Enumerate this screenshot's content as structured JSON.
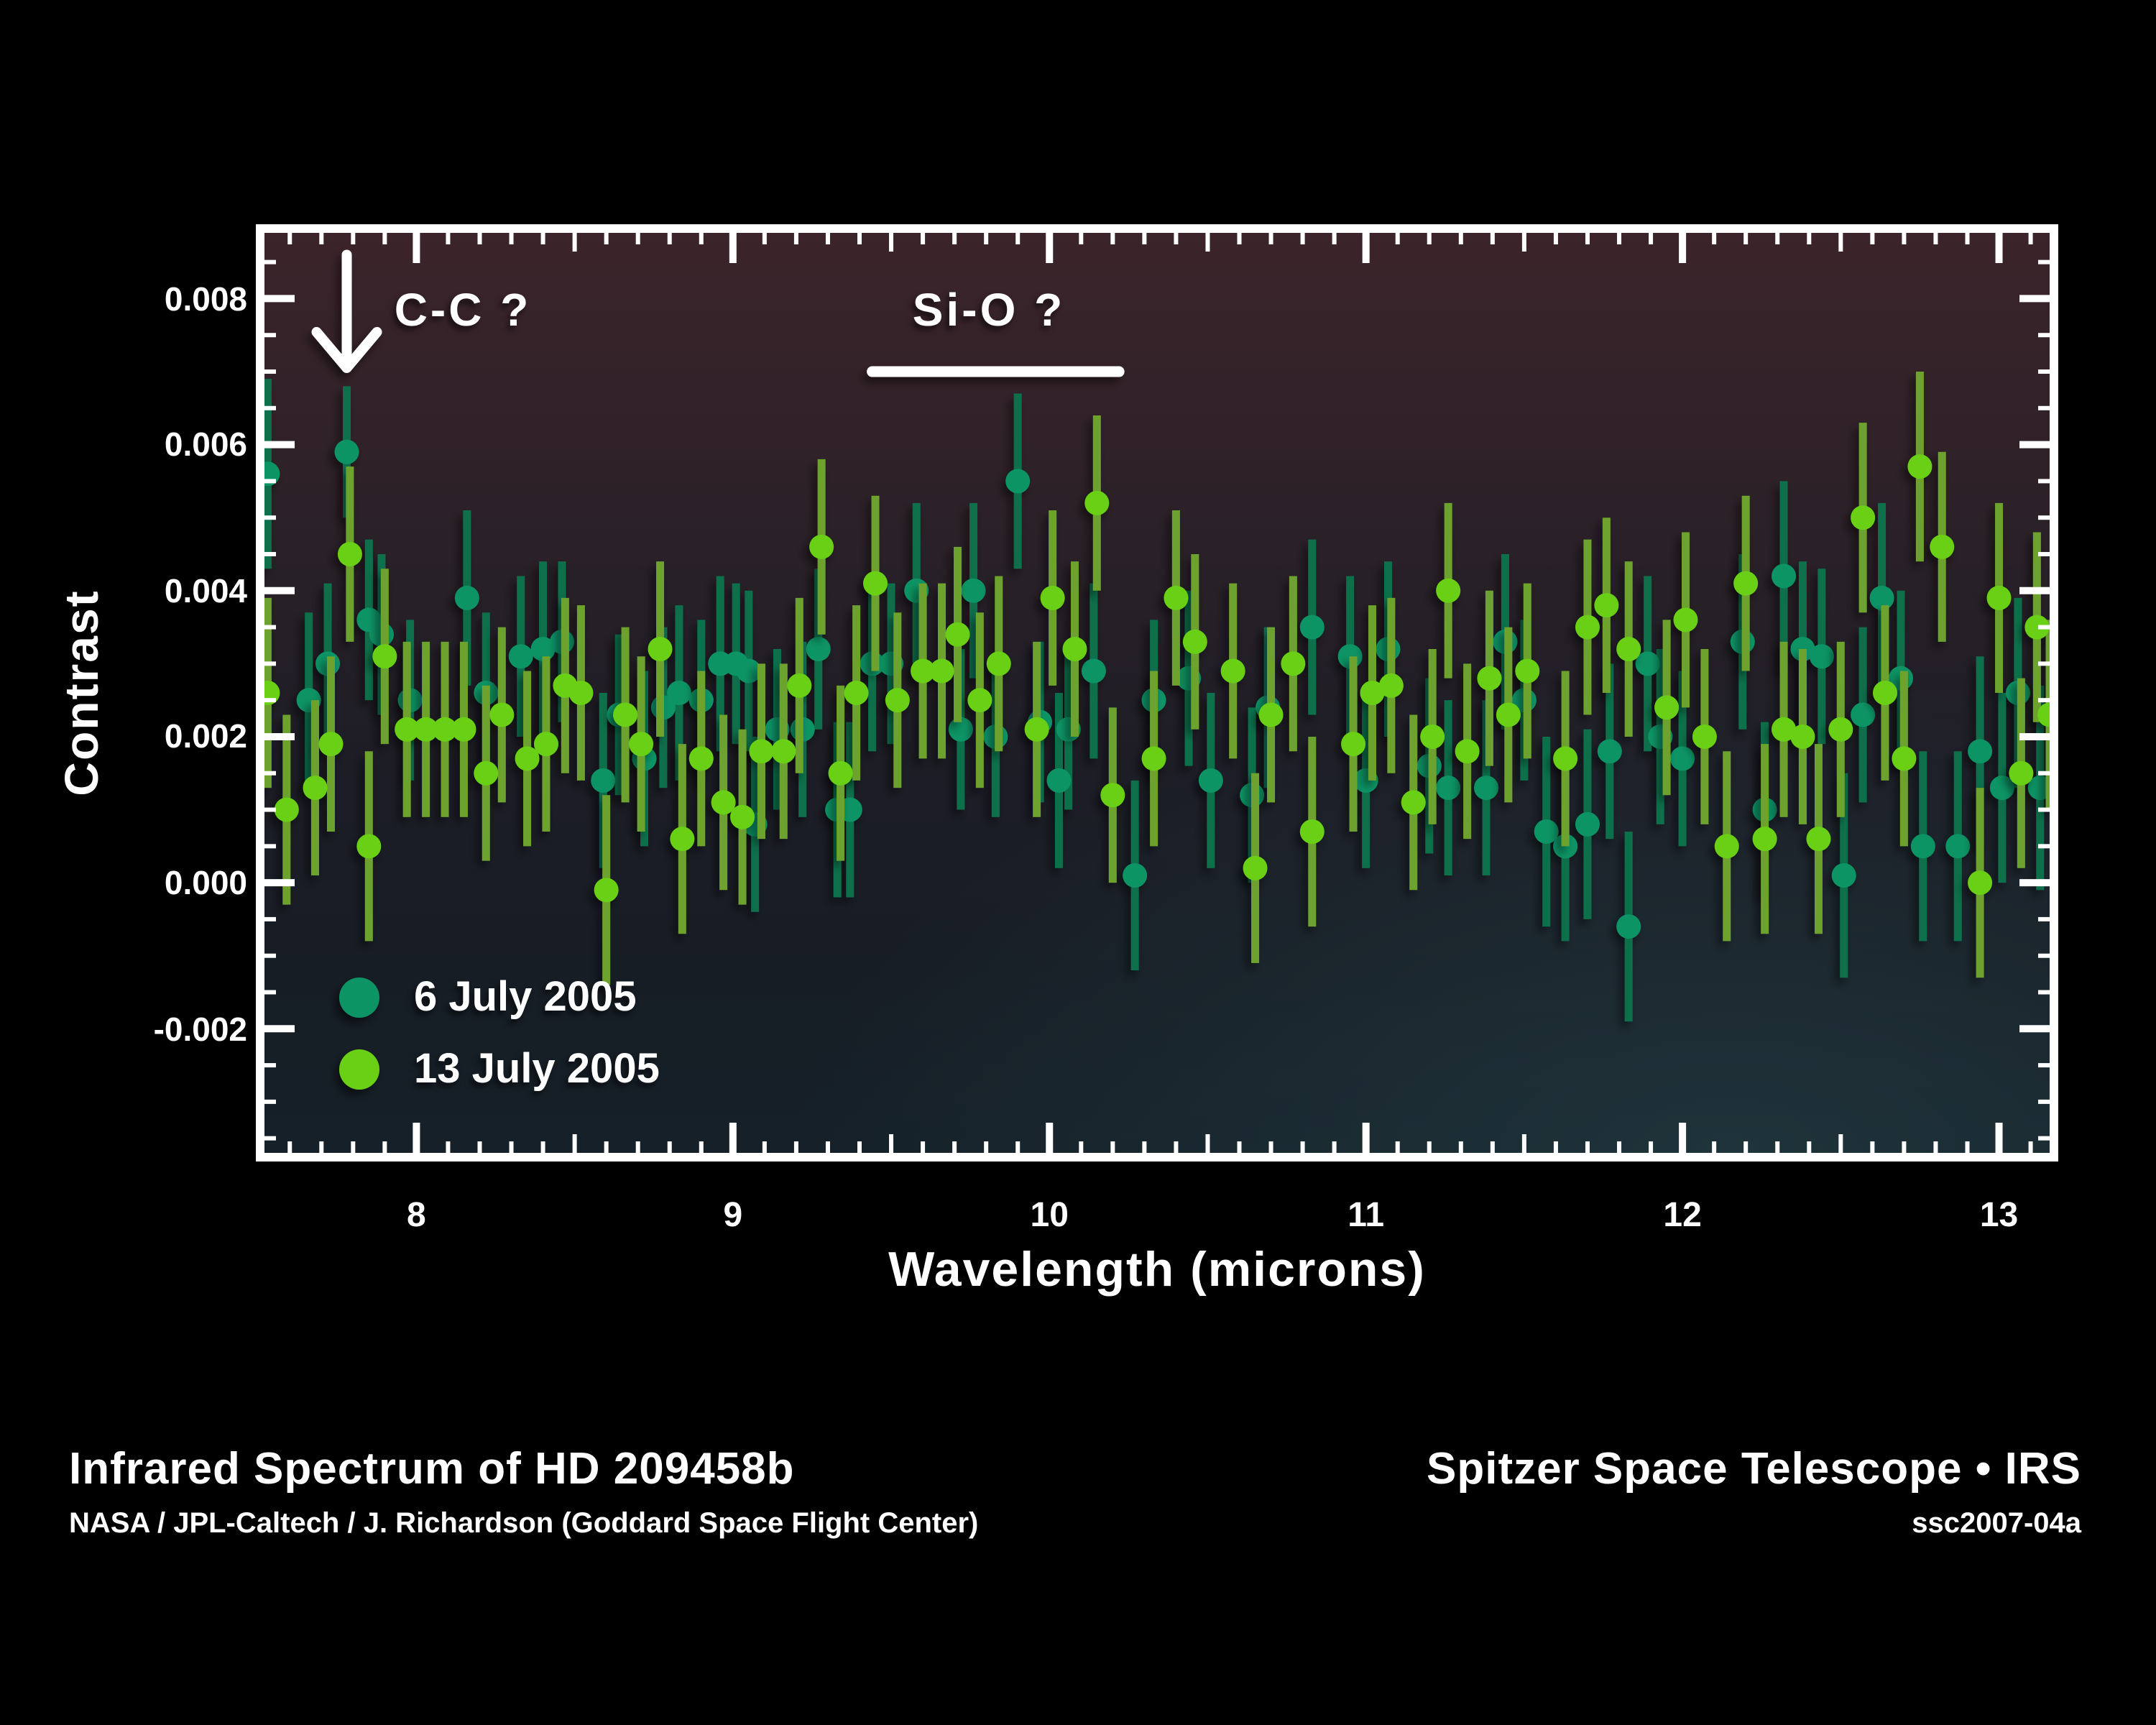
{
  "figure": {
    "captions": {
      "left_title": "Infrared Spectrum of HD 209458b",
      "left_credit": "NASA /  JPL-Caltech /  J. Richardson (Goddard Space Flight Center)",
      "right_title": "Spitzer Space Telescope • IRS",
      "right_id": "ssc2007-04a"
    },
    "background_color": "#000000"
  },
  "chart_data": {
    "type": "scatter",
    "title": "",
    "xlabel": "Wavelength (microns)",
    "ylabel": "Contrast",
    "xlim": [
      7.52,
      13.16
    ],
    "ylim": [
      -0.0037,
      0.0089
    ],
    "grid": false,
    "legend_position": "inside-bottom-left",
    "x_ticks": [
      8,
      9,
      10,
      11,
      12,
      13
    ],
    "x_minor_step": 0.1,
    "y_ticks": [
      {
        "v": 0.008,
        "label": "0.008"
      },
      {
        "v": 0.006,
        "label": "0.006"
      },
      {
        "v": 0.004,
        "label": "0.004"
      },
      {
        "v": 0.002,
        "label": "0.002"
      },
      {
        "v": 0.0,
        "label": "0.000"
      },
      {
        "v": -0.002,
        "label": "-0.002"
      }
    ],
    "y_minor_step": 0.0005,
    "frame_color": "#ffffff",
    "plot_bg": {
      "top": "#3b242a",
      "upper": "#2c2128",
      "mid": "#1d1d26",
      "lower": "#171d25",
      "bottom": "#152028",
      "corner_accent": "#2b4b50"
    },
    "annotations": [
      {
        "type": "arrow",
        "label": "C-C ?",
        "x": 7.78,
        "y_from": 0.0086,
        "y_to": 0.00705
      },
      {
        "type": "line",
        "label": "Si-O ?",
        "x1": 9.44,
        "x2": 10.22,
        "y": 0.007
      }
    ],
    "series": [
      {
        "name": "6 July 2005",
        "color": "#0f9465",
        "bar_color": "#0e6f4c",
        "points": [
          [
            7.53,
            0.0056,
            0.0013
          ],
          [
            7.66,
            0.0025,
            0.0012
          ],
          [
            7.72,
            0.003,
            0.0011
          ],
          [
            7.78,
            0.0059,
            0.0009
          ],
          [
            7.85,
            0.0036,
            0.0011
          ],
          [
            7.89,
            0.0034,
            0.0011
          ],
          [
            7.98,
            0.0025,
            0.0011
          ],
          [
            8.16,
            0.0039,
            0.0012
          ],
          [
            8.22,
            0.0026,
            0.0011
          ],
          [
            8.33,
            0.0031,
            0.0011
          ],
          [
            8.4,
            0.0032,
            0.0012
          ],
          [
            8.46,
            0.0033,
            0.0011
          ],
          [
            8.59,
            0.0014,
            0.0012
          ],
          [
            8.64,
            0.0023,
            0.0011
          ],
          [
            8.72,
            0.0017,
            0.0012
          ],
          [
            8.78,
            0.0024,
            0.0011
          ],
          [
            8.83,
            0.0026,
            0.0012
          ],
          [
            8.9,
            0.0025,
            0.0011
          ],
          [
            8.96,
            0.003,
            0.0012
          ],
          [
            9.01,
            0.003,
            0.0011
          ],
          [
            9.05,
            0.0029,
            0.0011
          ],
          [
            9.07,
            0.0008,
            0.0012
          ],
          [
            9.14,
            0.0021,
            0.0011
          ],
          [
            9.22,
            0.0021,
            0.0012
          ],
          [
            9.27,
            0.0032,
            0.0011
          ],
          [
            9.33,
            0.001,
            0.0012
          ],
          [
            9.37,
            0.001,
            0.0012
          ],
          [
            9.44,
            0.003,
            0.0012
          ],
          [
            9.5,
            0.003,
            0.0011
          ],
          [
            9.58,
            0.004,
            0.0012
          ],
          [
            9.72,
            0.0021,
            0.0011
          ],
          [
            9.76,
            0.004,
            0.0012
          ],
          [
            9.83,
            0.002,
            0.0011
          ],
          [
            9.9,
            0.0055,
            0.0012
          ],
          [
            9.97,
            0.0022,
            0.0011
          ],
          [
            10.03,
            0.0014,
            0.0012
          ],
          [
            10.06,
            0.0021,
            0.0011
          ],
          [
            10.14,
            0.0029,
            0.0012
          ],
          [
            10.27,
            0.0001,
            0.0013
          ],
          [
            10.33,
            0.0025,
            0.0011
          ],
          [
            10.44,
            0.0028,
            0.0012
          ],
          [
            10.51,
            0.0014,
            0.0012
          ],
          [
            10.64,
            0.0012,
            0.0012
          ],
          [
            10.69,
            0.0024,
            0.0011
          ],
          [
            10.83,
            0.0035,
            0.0012
          ],
          [
            10.95,
            0.0031,
            0.0011
          ],
          [
            11.0,
            0.0014,
            0.0012
          ],
          [
            11.07,
            0.0032,
            0.0012
          ],
          [
            11.2,
            0.0016,
            0.0012
          ],
          [
            11.26,
            0.0013,
            0.0012
          ],
          [
            11.38,
            0.0013,
            0.0012
          ],
          [
            11.44,
            0.0033,
            0.0012
          ],
          [
            11.5,
            0.0025,
            0.0011
          ],
          [
            11.57,
            0.0007,
            0.0013
          ],
          [
            11.63,
            0.0005,
            0.0013
          ],
          [
            11.7,
            0.0008,
            0.0013
          ],
          [
            11.77,
            0.0018,
            0.0012
          ],
          [
            11.83,
            -0.0006,
            0.0013
          ],
          [
            11.89,
            0.003,
            0.0012
          ],
          [
            11.93,
            0.002,
            0.0012
          ],
          [
            12.0,
            0.0017,
            0.0012
          ],
          [
            12.19,
            0.0033,
            0.0012
          ],
          [
            12.26,
            0.001,
            0.0012
          ],
          [
            12.32,
            0.0042,
            0.0013
          ],
          [
            12.38,
            0.0032,
            0.0012
          ],
          [
            12.44,
            0.0031,
            0.0012
          ],
          [
            12.51,
            0.0001,
            0.0014
          ],
          [
            12.57,
            0.0023,
            0.0012
          ],
          [
            12.63,
            0.0039,
            0.0013
          ],
          [
            12.69,
            0.0028,
            0.0012
          ],
          [
            12.76,
            0.0005,
            0.0013
          ],
          [
            12.87,
            0.0005,
            0.0013
          ],
          [
            12.94,
            0.0018,
            0.0013
          ],
          [
            13.01,
            0.0013,
            0.0013
          ],
          [
            13.06,
            0.0026,
            0.0013
          ],
          [
            13.13,
            0.0013,
            0.0014
          ]
        ]
      },
      {
        "name": "13 July 2005",
        "color": "#69d012",
        "bar_color": "#6da22f",
        "points": [
          [
            7.53,
            0.0026,
            0.0013
          ],
          [
            7.59,
            0.001,
            0.0013
          ],
          [
            7.68,
            0.0013,
            0.0012
          ],
          [
            7.73,
            0.0019,
            0.0012
          ],
          [
            7.79,
            0.0045,
            0.0012
          ],
          [
            7.85,
            0.0005,
            0.0013
          ],
          [
            7.9,
            0.0031,
            0.0012
          ],
          [
            7.97,
            0.0021,
            0.0012
          ],
          [
            8.03,
            0.0021,
            0.0012
          ],
          [
            8.09,
            0.0021,
            0.0012
          ],
          [
            8.15,
            0.0021,
            0.0012
          ],
          [
            8.22,
            0.0015,
            0.0012
          ],
          [
            8.27,
            0.0023,
            0.0012
          ],
          [
            8.35,
            0.0017,
            0.0012
          ],
          [
            8.41,
            0.0019,
            0.0012
          ],
          [
            8.47,
            0.0027,
            0.0012
          ],
          [
            8.52,
            0.0026,
            0.0012
          ],
          [
            8.6,
            -0.0001,
            0.0013
          ],
          [
            8.66,
            0.0023,
            0.0012
          ],
          [
            8.71,
            0.0019,
            0.0012
          ],
          [
            8.77,
            0.0032,
            0.0012
          ],
          [
            8.84,
            0.0006,
            0.0013
          ],
          [
            8.9,
            0.0017,
            0.0012
          ],
          [
            8.97,
            0.0011,
            0.0012
          ],
          [
            9.03,
            0.0009,
            0.0012
          ],
          [
            9.09,
            0.0018,
            0.0012
          ],
          [
            9.16,
            0.0018,
            0.0012
          ],
          [
            9.21,
            0.0027,
            0.0012
          ],
          [
            9.28,
            0.0046,
            0.0012
          ],
          [
            9.34,
            0.0015,
            0.0012
          ],
          [
            9.39,
            0.0026,
            0.0012
          ],
          [
            9.45,
            0.0041,
            0.0012
          ],
          [
            9.52,
            0.0025,
            0.0012
          ],
          [
            9.6,
            0.0029,
            0.0012
          ],
          [
            9.66,
            0.0029,
            0.0012
          ],
          [
            9.71,
            0.0034,
            0.0012
          ],
          [
            9.78,
            0.0025,
            0.0012
          ],
          [
            9.84,
            0.003,
            0.0012
          ],
          [
            9.96,
            0.0021,
            0.0012
          ],
          [
            10.01,
            0.0039,
            0.0012
          ],
          [
            10.08,
            0.0032,
            0.0012
          ],
          [
            10.15,
            0.0052,
            0.0012
          ],
          [
            10.2,
            0.0012,
            0.0012
          ],
          [
            10.33,
            0.0017,
            0.0012
          ],
          [
            10.4,
            0.0039,
            0.0012
          ],
          [
            10.46,
            0.0033,
            0.0012
          ],
          [
            10.58,
            0.0029,
            0.0012
          ],
          [
            10.65,
            0.0002,
            0.0013
          ],
          [
            10.7,
            0.0023,
            0.0012
          ],
          [
            10.77,
            0.003,
            0.0012
          ],
          [
            10.83,
            0.0007,
            0.0013
          ],
          [
            10.96,
            0.0019,
            0.0012
          ],
          [
            11.02,
            0.0026,
            0.0012
          ],
          [
            11.08,
            0.0027,
            0.0012
          ],
          [
            11.15,
            0.0011,
            0.0012
          ],
          [
            11.21,
            0.002,
            0.0012
          ],
          [
            11.26,
            0.004,
            0.0012
          ],
          [
            11.32,
            0.0018,
            0.0012
          ],
          [
            11.39,
            0.0028,
            0.0012
          ],
          [
            11.45,
            0.0023,
            0.0012
          ],
          [
            11.51,
            0.0029,
            0.0012
          ],
          [
            11.63,
            0.0017,
            0.0012
          ],
          [
            11.7,
            0.0035,
            0.0012
          ],
          [
            11.76,
            0.0038,
            0.0012
          ],
          [
            11.83,
            0.0032,
            0.0012
          ],
          [
            11.95,
            0.0024,
            0.0012
          ],
          [
            12.01,
            0.0036,
            0.0012
          ],
          [
            12.07,
            0.002,
            0.0012
          ],
          [
            12.14,
            0.0005,
            0.0013
          ],
          [
            12.2,
            0.0041,
            0.0012
          ],
          [
            12.26,
            0.0006,
            0.0013
          ],
          [
            12.32,
            0.0021,
            0.0012
          ],
          [
            12.38,
            0.002,
            0.0012
          ],
          [
            12.43,
            0.0006,
            0.0013
          ],
          [
            12.5,
            0.0021,
            0.0012
          ],
          [
            12.57,
            0.005,
            0.0013
          ],
          [
            12.64,
            0.0026,
            0.0012
          ],
          [
            12.7,
            0.0017,
            0.0012
          ],
          [
            12.75,
            0.0057,
            0.0013
          ],
          [
            12.82,
            0.0046,
            0.0013
          ],
          [
            12.94,
            0.0,
            0.0013
          ],
          [
            13.0,
            0.0039,
            0.0013
          ],
          [
            13.07,
            0.0015,
            0.0013
          ],
          [
            13.12,
            0.0035,
            0.0013
          ],
          [
            13.16,
            0.0023,
            0.0013
          ]
        ]
      }
    ]
  }
}
